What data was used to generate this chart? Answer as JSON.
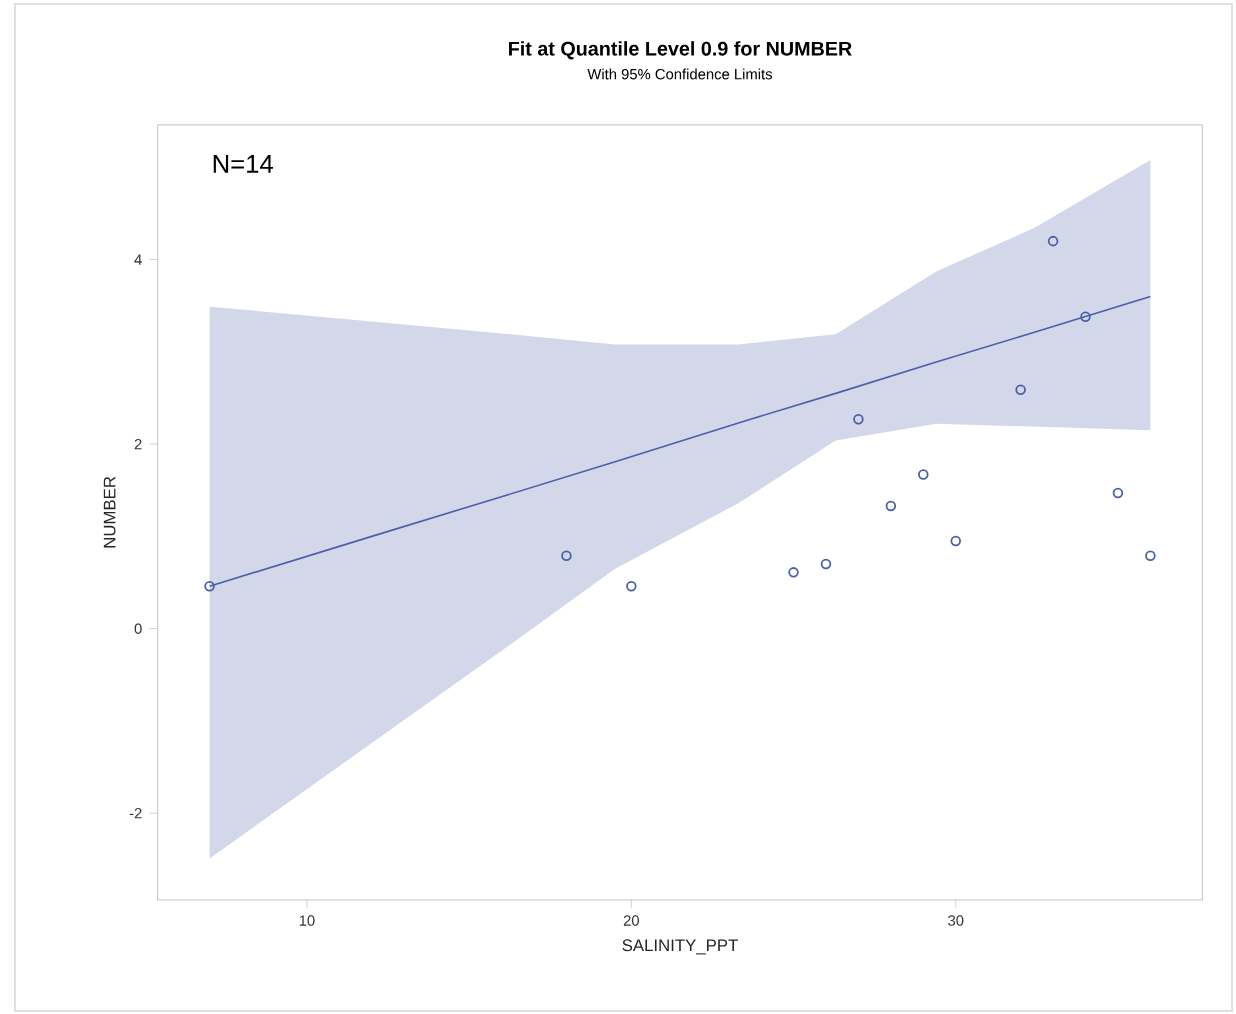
{
  "chart_data": {
    "type": "scatter",
    "title": "Fit at Quantile Level 0.9 for NUMBER",
    "subtitle": "With 95% Confidence Limits",
    "xlabel": "SALINITY_PPT",
    "ylabel": "NUMBER",
    "annotations": [
      "N=14"
    ],
    "xlim": [
      5.4,
      37.6
    ],
    "ylim": [
      -2.94,
      5.46
    ],
    "xticks": [
      10,
      20,
      30
    ],
    "yticks": [
      -2,
      0,
      2,
      4
    ],
    "series": [
      {
        "type": "line",
        "color": "#4b5fa6",
        "marker": "none",
        "x": [
          7,
          12,
          16,
          19.5,
          23.3,
          26.3,
          29.4,
          32.4,
          36
        ],
        "values": [
          0.46,
          1.0,
          1.43,
          1.81,
          2.23,
          2.55,
          2.89,
          3.21,
          3.6
        ],
        "lower": [
          -2.49,
          -1.24,
          -0.24,
          0.65,
          1.36,
          2.04,
          2.22,
          2.19,
          2.15
        ],
        "upper": [
          3.49,
          3.33,
          3.2,
          3.08,
          3.08,
          3.19,
          3.87,
          4.34,
          5.08
        ]
      },
      {
        "color": "#4b5fa6",
        "marker": "circle",
        "x": [
          7,
          18,
          20,
          25,
          26,
          27,
          28,
          29,
          30,
          32,
          33,
          34,
          35,
          36
        ],
        "values": [
          0.46,
          0.79,
          0.46,
          0.61,
          0.7,
          2.27,
          1.33,
          1.67,
          0.95,
          2.59,
          4.2,
          3.38,
          1.47,
          0.79
        ]
      }
    ]
  }
}
